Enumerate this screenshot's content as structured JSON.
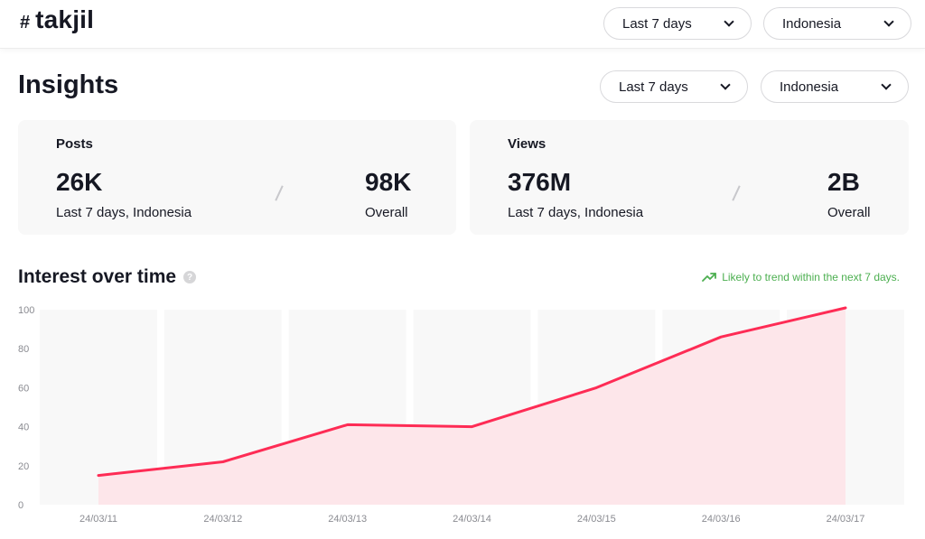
{
  "header": {
    "hash_symbol": "#",
    "hashtag": "takjil",
    "period_label": "Last 7 days",
    "region_label": "Indonesia"
  },
  "insights": {
    "title": "Insights",
    "period_label": "Last 7 days",
    "region_label": "Indonesia"
  },
  "posts": {
    "label": "Posts",
    "recent_value": "26K",
    "recent_caption": "Last 7 days, Indonesia",
    "overall_value": "98K",
    "overall_caption": "Overall"
  },
  "views": {
    "label": "Views",
    "recent_value": "376M",
    "recent_caption": "Last 7 days, Indonesia",
    "overall_value": "2B",
    "overall_caption": "Overall"
  },
  "interest": {
    "title": "Interest over time",
    "help_symbol": "?",
    "trend_text": "Likely to trend within the next 7 days."
  },
  "colors": {
    "line": "#fe2c55",
    "area": "#fde6ea",
    "trend": "#4caf50",
    "card_bg": "#f8f8f8"
  },
  "chart_data": {
    "type": "area",
    "title": "Interest over time",
    "categories": [
      "24/03/11",
      "24/03/12",
      "24/03/13",
      "24/03/14",
      "24/03/15",
      "24/03/16",
      "24/03/17"
    ],
    "values": [
      15,
      22,
      41,
      40,
      60,
      86,
      101
    ],
    "yticks": [
      "100",
      "80",
      "60",
      "40",
      "20",
      "0"
    ],
    "ylim": [
      0,
      100
    ],
    "xlabel": "",
    "ylabel": ""
  }
}
